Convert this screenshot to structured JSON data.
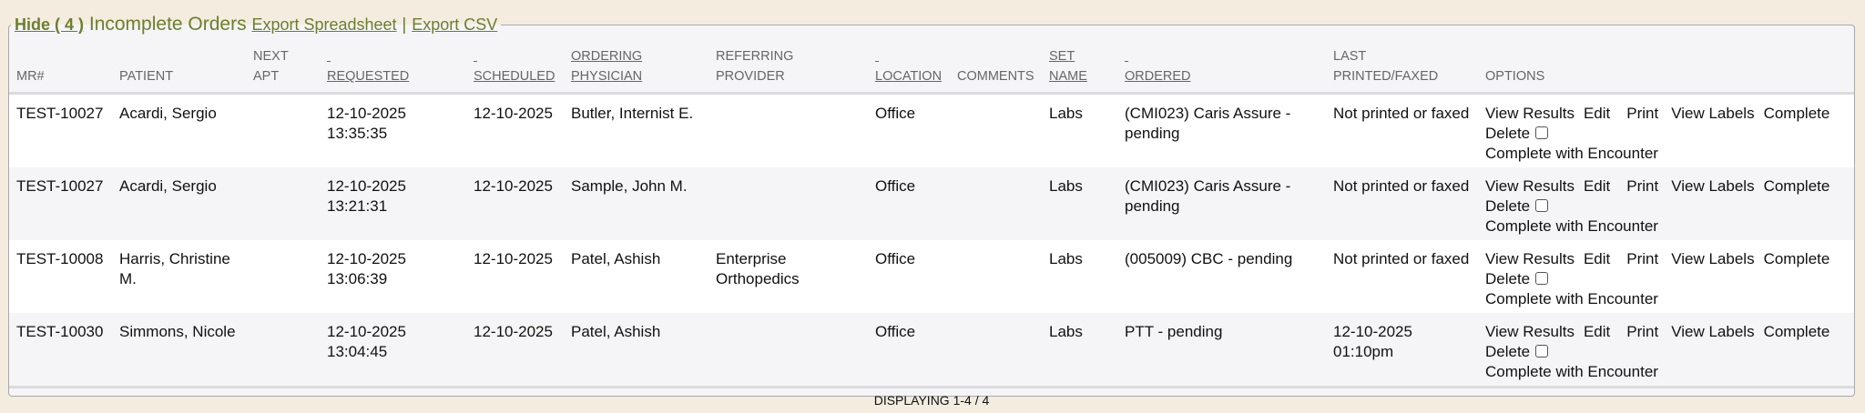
{
  "legend": {
    "hide_label": "Hide ( 4 )",
    "title": "Incomplete Orders",
    "export_spreadsheet": "Export Spreadsheet",
    "separator": "|",
    "export_csv": "Export CSV"
  },
  "colors": {
    "accent": "#6b7f2a",
    "background": "#f3ecdf"
  },
  "columns": [
    {
      "line1": "",
      "line2": "MR#"
    },
    {
      "line1": "",
      "line2": "PATIENT"
    },
    {
      "line1": "NEXT",
      "line2": "APT"
    },
    {
      "line1": "",
      "line2": "REQUESTED"
    },
    {
      "line1": "",
      "line2": "SCHEDULED"
    },
    {
      "line1": "ORDERING",
      "line2": "PHYSICIAN"
    },
    {
      "line1": "REFERRING",
      "line2": "PROVIDER"
    },
    {
      "line1": "",
      "line2": "LOCATION"
    },
    {
      "line1": "",
      "line2": "COMMENTS"
    },
    {
      "line1": "SET",
      "line2": "NAME"
    },
    {
      "line1": "",
      "line2": "ORDERED"
    },
    {
      "line1": "LAST",
      "line2": "PRINTED/FAXED"
    },
    {
      "line1": "",
      "line2": "OPTIONS"
    }
  ],
  "options": {
    "view_results": "View Results",
    "edit": "Edit",
    "print": "Print",
    "view_labels": "View Labels",
    "complete": "Complete",
    "delete": "Delete",
    "complete_with_encounter": "Complete with Encounter"
  },
  "rows": [
    {
      "mr": "TEST-10027",
      "patient": "Acardi, Sergio",
      "next_apt": "",
      "requested_date": "12-10-2025",
      "requested_time": "13:35:35",
      "scheduled": "12-10-2025",
      "physician": "Butler, Internist E.",
      "referring": "",
      "location": "Office",
      "comments": "",
      "set_name": "Labs",
      "ordered": "(CMI023) Caris Assure - pending",
      "last_printed": "Not printed or faxed"
    },
    {
      "mr": "TEST-10027",
      "patient": "Acardi, Sergio",
      "next_apt": "",
      "requested_date": "12-10-2025",
      "requested_time": "13:21:31",
      "scheduled": "12-10-2025",
      "physician": "Sample, John M.",
      "referring": "",
      "location": "Office",
      "comments": "",
      "set_name": "Labs",
      "ordered": "(CMI023) Caris Assure - pending",
      "last_printed": "Not printed or faxed"
    },
    {
      "mr": "TEST-10008",
      "patient": "Harris, Christine M.",
      "next_apt": "",
      "requested_date": "12-10-2025",
      "requested_time": "13:06:39",
      "scheduled": "12-10-2025",
      "physician": "Patel, Ashish",
      "referring": "Enterprise Orthopedics",
      "location": "Office",
      "comments": "",
      "set_name": "Labs",
      "ordered": "(005009) CBC - pending",
      "last_printed": "Not printed or faxed"
    },
    {
      "mr": "TEST-10030",
      "patient": "Simmons, Nicole",
      "next_apt": "",
      "requested_date": "12-10-2025",
      "requested_time": "13:04:45",
      "scheduled": "12-10-2025",
      "physician": "Patel, Ashish",
      "referring": "",
      "location": "Office",
      "comments": "",
      "set_name": "Labs",
      "ordered": "PTT - pending",
      "last_printed": "12-10-2025 01:10pm"
    }
  ],
  "footer": {
    "displaying": "DISPLAYING 1-4 / 4"
  }
}
